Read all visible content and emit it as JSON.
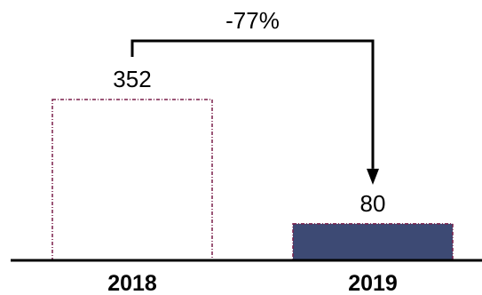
{
  "chart_data": {
    "type": "bar",
    "categories": [
      "2018",
      "2019"
    ],
    "values": [
      352,
      80
    ],
    "data_labels": [
      "352",
      "80"
    ],
    "bar_styles": [
      "outline-dashed",
      "filled"
    ],
    "ylim": [
      0,
      352
    ],
    "grid": false,
    "legend": "none",
    "annotation": {
      "text": "-77%",
      "from": "2018",
      "to": "2019"
    },
    "colors": {
      "filled_bar": "#3d4a74",
      "bar_border": "#7a1f4a",
      "axis": "#000000",
      "arrow": "#000000"
    }
  }
}
